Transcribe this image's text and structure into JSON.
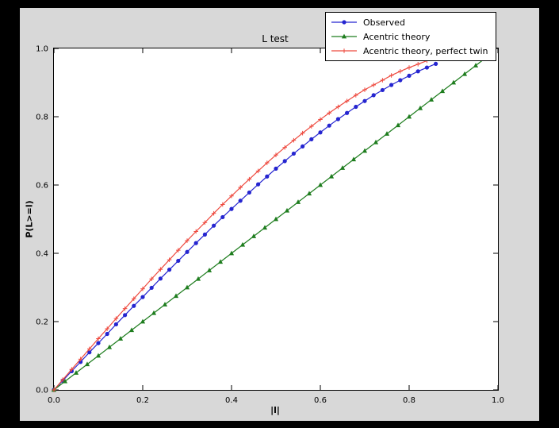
{
  "window": {
    "frame_color": "#000000",
    "figure_background": "#d8d8d8",
    "axes_background": "#ffffff"
  },
  "chart_data": {
    "type": "line",
    "title": "L test",
    "xlabel": "|l|",
    "ylabel": "P(L>=l)",
    "xlim": [
      0,
      1
    ],
    "ylim": [
      0,
      1
    ],
    "grid": false,
    "legend_position": "upper right",
    "xticks": {
      "values": [
        0,
        0.2,
        0.4,
        0.6,
        0.8,
        1.0
      ],
      "labels": [
        "0.0",
        "0.2",
        "0.4",
        "0.6",
        "0.8",
        "1.0"
      ]
    },
    "yticks": {
      "values": [
        0,
        0.2,
        0.4,
        0.6,
        0.8,
        1.0
      ],
      "labels": [
        "0.0",
        "0.2",
        "0.4",
        "0.6",
        "0.8",
        "1.0"
      ]
    },
    "series": [
      {
        "name": "Observed",
        "color": "#2525d0",
        "marker": "circle",
        "x": [
          0,
          0.02,
          0.04,
          0.06,
          0.08,
          0.1,
          0.12,
          0.14,
          0.16,
          0.18,
          0.2,
          0.22,
          0.24,
          0.26,
          0.28,
          0.3,
          0.32,
          0.34,
          0.36,
          0.38,
          0.4,
          0.42,
          0.44,
          0.46,
          0.48,
          0.5,
          0.52,
          0.54,
          0.56,
          0.58,
          0.6,
          0.62,
          0.64,
          0.66,
          0.68,
          0.7,
          0.72,
          0.74,
          0.76,
          0.78,
          0.8,
          0.82,
          0.84,
          0.86
        ],
        "y": [
          0,
          0.027,
          0.055,
          0.082,
          0.11,
          0.137,
          0.164,
          0.192,
          0.219,
          0.246,
          0.272,
          0.299,
          0.326,
          0.352,
          0.378,
          0.404,
          0.43,
          0.455,
          0.481,
          0.506,
          0.53,
          0.554,
          0.578,
          0.602,
          0.625,
          0.648,
          0.67,
          0.692,
          0.713,
          0.734,
          0.754,
          0.774,
          0.793,
          0.811,
          0.829,
          0.846,
          0.863,
          0.878,
          0.893,
          0.907,
          0.92,
          0.933,
          0.944,
          0.955
        ]
      },
      {
        "name": "Acentric theory",
        "color": "#1e7d1e",
        "marker": "triangle",
        "x": [
          0,
          0.025,
          0.05,
          0.075,
          0.1,
          0.125,
          0.15,
          0.175,
          0.2,
          0.225,
          0.25,
          0.275,
          0.3,
          0.325,
          0.35,
          0.375,
          0.4,
          0.425,
          0.45,
          0.475,
          0.5,
          0.525,
          0.55,
          0.575,
          0.6,
          0.625,
          0.65,
          0.675,
          0.7,
          0.725,
          0.75,
          0.775,
          0.8,
          0.825,
          0.85,
          0.875,
          0.9,
          0.925,
          0.95,
          0.975
        ],
        "y": [
          0,
          0.025,
          0.05,
          0.075,
          0.1,
          0.125,
          0.15,
          0.175,
          0.2,
          0.225,
          0.25,
          0.275,
          0.3,
          0.325,
          0.35,
          0.375,
          0.4,
          0.425,
          0.45,
          0.475,
          0.5,
          0.525,
          0.55,
          0.575,
          0.6,
          0.625,
          0.65,
          0.675,
          0.7,
          0.725,
          0.75,
          0.775,
          0.8,
          0.825,
          0.85,
          0.875,
          0.9,
          0.925,
          0.95,
          0.975
        ]
      },
      {
        "name": "Acentric theory, perfect twin",
        "color": "#ee4a3f",
        "marker": "plus",
        "x": [
          0,
          0.02,
          0.04,
          0.06,
          0.08,
          0.1,
          0.12,
          0.14,
          0.16,
          0.18,
          0.2,
          0.22,
          0.24,
          0.26,
          0.28,
          0.3,
          0.32,
          0.34,
          0.36,
          0.38,
          0.4,
          0.42,
          0.44,
          0.46,
          0.48,
          0.5,
          0.52,
          0.54,
          0.56,
          0.58,
          0.6,
          0.62,
          0.64,
          0.66,
          0.68,
          0.7,
          0.72,
          0.74,
          0.76,
          0.78,
          0.8,
          0.82,
          0.84,
          0.86
        ],
        "y": [
          0,
          0.03,
          0.06,
          0.09,
          0.12,
          0.15,
          0.179,
          0.209,
          0.238,
          0.267,
          0.296,
          0.325,
          0.353,
          0.381,
          0.409,
          0.437,
          0.464,
          0.49,
          0.517,
          0.543,
          0.568,
          0.593,
          0.617,
          0.641,
          0.665,
          0.688,
          0.71,
          0.731,
          0.752,
          0.772,
          0.792,
          0.811,
          0.829,
          0.846,
          0.863,
          0.879,
          0.893,
          0.907,
          0.921,
          0.933,
          0.944,
          0.954,
          0.964,
          0.972
        ]
      }
    ]
  }
}
